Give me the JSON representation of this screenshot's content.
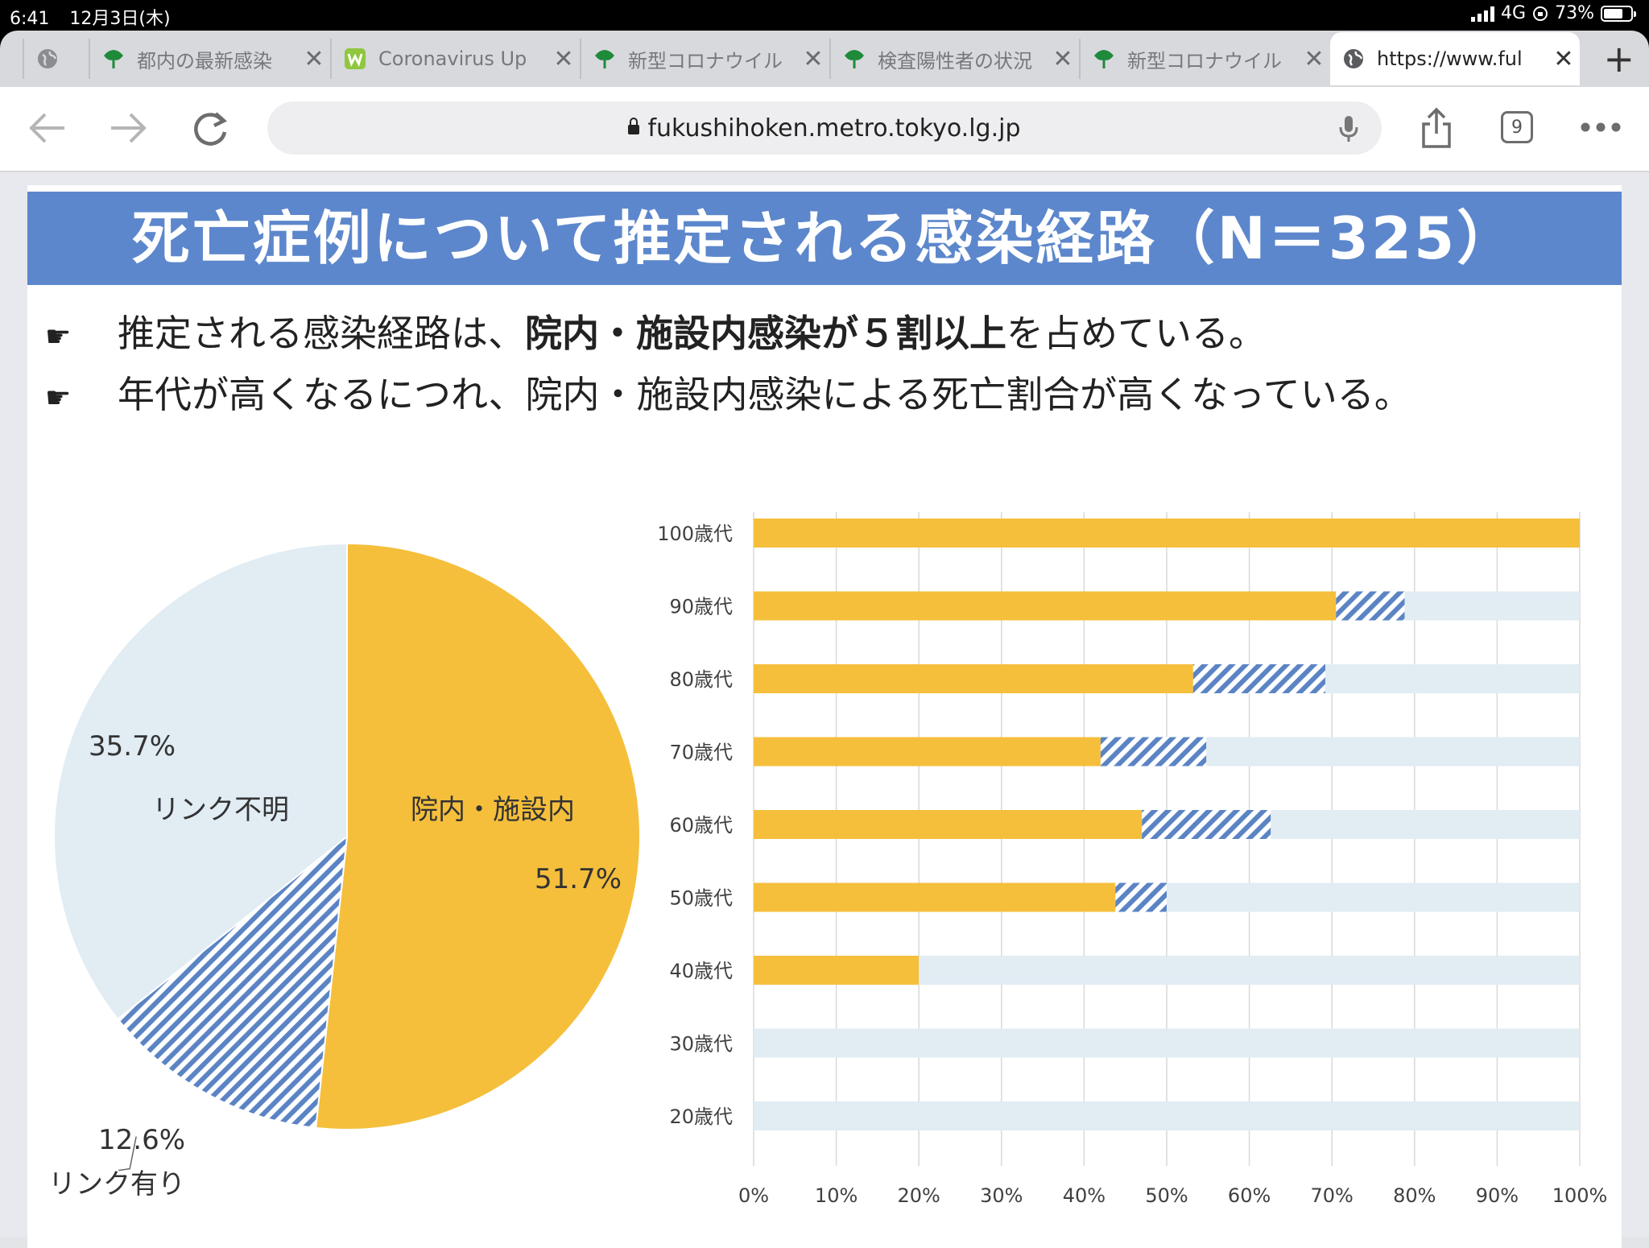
{
  "status_bar": {
    "time": "6:41",
    "date": "12月3日(木)",
    "network": "4G",
    "battery": "73%",
    "battery_level": 0.73
  },
  "tabs": [
    {
      "title": "都内の最新感染",
      "favicon": "tokyo-ginkgo-icon",
      "active": false
    },
    {
      "title": "Coronavirus Up",
      "favicon": "w-logo-icon",
      "active": false
    },
    {
      "title": "新型コロナウイル",
      "favicon": "tokyo-ginkgo-icon",
      "active": false
    },
    {
      "title": "検査陽性者の状況",
      "favicon": "tokyo-ginkgo-icon",
      "active": false
    },
    {
      "title": "新型コロナウイル",
      "favicon": "tokyo-ginkgo-icon",
      "active": false
    },
    {
      "title": "https://www.ful",
      "favicon": "globe-icon",
      "active": true
    }
  ],
  "toolbar": {
    "url": "fukushihoken.metro.tokyo.lg.jp",
    "tab_count": "9"
  },
  "slide": {
    "title": "死亡症例について推定される感染経路（N＝325）",
    "bullet1": {
      "pre": "推定される感染経路は、",
      "bold": "院内・施設内感染が５割以上",
      "post": "を占めている。"
    },
    "bullet2": "年代が高くなるにつれ、院内・施設内感染による死亡割合が高くなっている。"
  },
  "colors": {
    "banner": "#5c87cc",
    "in_hospital": "#f5bf3c",
    "linked": "#5b84c4",
    "unknown": "#e1ecf3"
  },
  "chart_data": [
    {
      "type": "pie",
      "slices": [
        {
          "name": "院内・施設内",
          "value": 51.7,
          "label": "51.7%"
        },
        {
          "name": "リンク有り",
          "value": 12.6,
          "label": "12.6%"
        },
        {
          "name": "リンク不明",
          "value": 35.7,
          "label": "35.7%"
        }
      ]
    },
    {
      "type": "bar",
      "orientation": "horizontal",
      "stacked": true,
      "categories": [
        "100歳代",
        "90歳代",
        "80歳代",
        "70歳代",
        "60歳代",
        "50歳代",
        "40歳代",
        "30歳代",
        "20歳代"
      ],
      "series": [
        {
          "values": [
            100,
            70.5,
            53.2,
            42,
            47,
            43.8,
            20,
            0,
            0
          ]
        },
        {
          "values": [
            0,
            8.3,
            16,
            12.8,
            15.6,
            6.2,
            0,
            0,
            0
          ]
        },
        {
          "values": [
            0,
            21.2,
            30.8,
            45.2,
            37.4,
            50,
            80,
            100,
            100
          ]
        }
      ],
      "xlim": [
        0,
        100
      ],
      "xticks": [
        "0%",
        "10%",
        "20%",
        "30%",
        "40%",
        "50%",
        "60%",
        "70%",
        "80%",
        "90%",
        "100%"
      ],
      "grid": true
    }
  ]
}
